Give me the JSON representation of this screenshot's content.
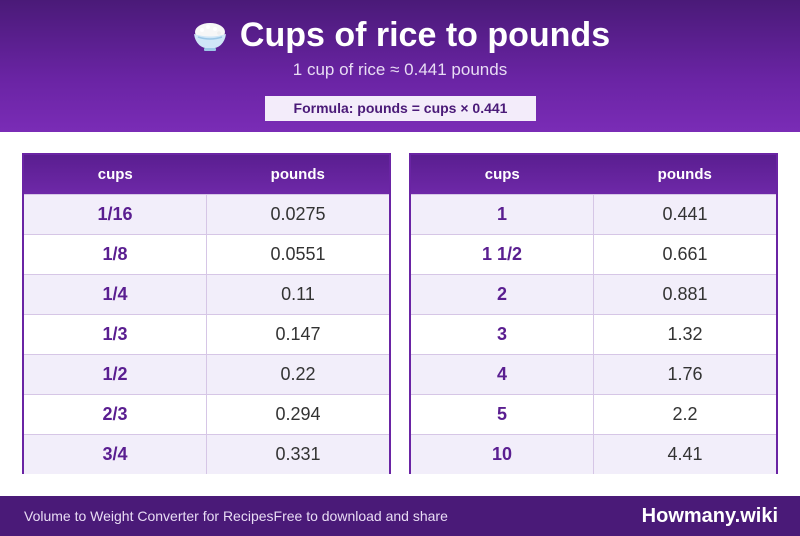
{
  "header": {
    "title": "Cups of rice to pounds",
    "icon": "rice-bowl-icon",
    "subtitle": "1 cup of rice ≈ 0.441 pounds",
    "formula": "Formula: pounds = cups × 0.441"
  },
  "tables": {
    "left": {
      "col_cups": "cups",
      "col_pounds": "pounds",
      "rows": [
        {
          "cups": "1/16",
          "pounds": "0.0275"
        },
        {
          "cups": "1/8",
          "pounds": "0.0551"
        },
        {
          "cups": "1/4",
          "pounds": "0.11"
        },
        {
          "cups": "1/3",
          "pounds": "0.147"
        },
        {
          "cups": "1/2",
          "pounds": "0.22"
        },
        {
          "cups": "2/3",
          "pounds": "0.294"
        },
        {
          "cups": "3/4",
          "pounds": "0.331"
        }
      ]
    },
    "right": {
      "col_cups": "cups",
      "col_pounds": "pounds",
      "rows": [
        {
          "cups": "1",
          "pounds": "0.441"
        },
        {
          "cups": "1 1/2",
          "pounds": "0.661"
        },
        {
          "cups": "2",
          "pounds": "0.881"
        },
        {
          "cups": "3",
          "pounds": "1.32"
        },
        {
          "cups": "4",
          "pounds": "1.76"
        },
        {
          "cups": "5",
          "pounds": "2.2"
        },
        {
          "cups": "10",
          "pounds": "4.41"
        }
      ]
    }
  },
  "footer": {
    "tagline": "Volume to Weight Converter for Recipes",
    "share": "Free to download and share",
    "brand": "Howmany.wiki"
  },
  "colors": {
    "primary": "#6a24a4",
    "dark": "#4a1a78",
    "row_alt": "#f2eefa"
  }
}
